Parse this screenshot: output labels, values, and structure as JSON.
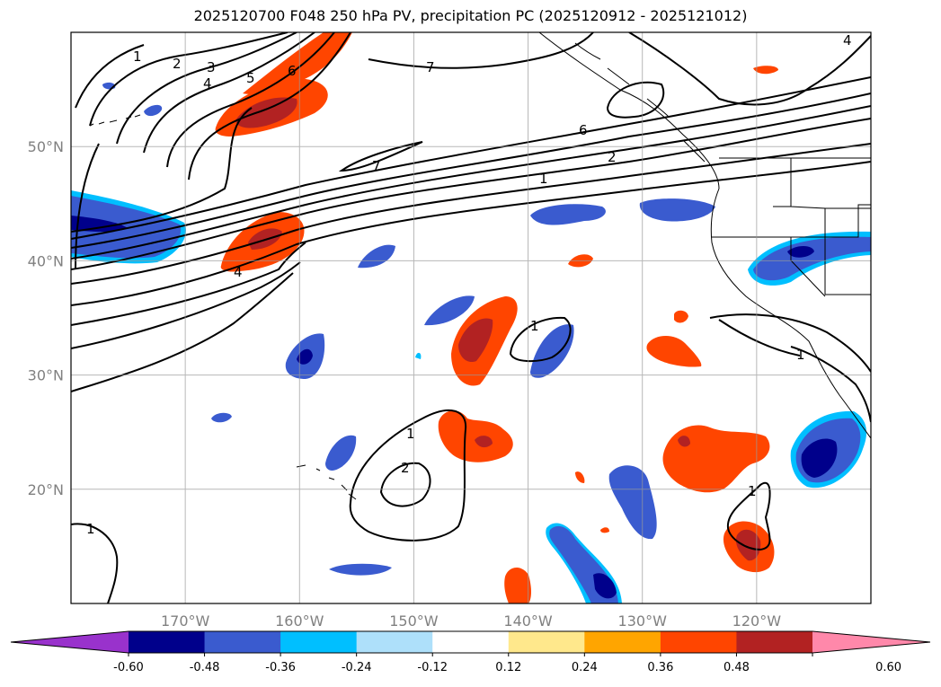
{
  "title": "2025120700 F048 250 hPa PV, precipitation PC (2025120912 - 2025121012)",
  "map": {
    "lon_range": [
      -180,
      -110
    ],
    "lat_range": [
      10,
      60
    ],
    "lon_ticks": [
      {
        "value": -170,
        "label": "170°W"
      },
      {
        "value": -160,
        "label": "160°W"
      },
      {
        "value": -150,
        "label": "150°W"
      },
      {
        "value": -140,
        "label": "140°W"
      },
      {
        "value": -130,
        "label": "130°W"
      },
      {
        "value": -120,
        "label": "120°W"
      }
    ],
    "lat_ticks": [
      {
        "value": 50,
        "label": "50°N"
      },
      {
        "value": 40,
        "label": "40°N"
      },
      {
        "value": 30,
        "label": "30°N"
      },
      {
        "value": 20,
        "label": "20°N"
      }
    ],
    "grid": true
  },
  "colorbar": {
    "extend": "both",
    "levels": [
      "-0.60",
      "-0.48",
      "-0.36",
      "-0.24",
      "-0.12",
      "0.12",
      "0.24",
      "0.36",
      "0.48",
      "0.60"
    ],
    "colors": [
      "#9932cc",
      "#00008b",
      "#3a5bcf",
      "#00bfff",
      "#aee0fa",
      "#ffffff",
      "#ffe88c",
      "#ffa500",
      "#ff4500",
      "#b22222",
      "#ff88aa"
    ]
  },
  "pv_contour_labels": [
    "1",
    "2",
    "3",
    "4",
    "5",
    "6",
    "7",
    "7",
    "6",
    "2",
    "1",
    "4",
    "1",
    "1",
    "2",
    "1",
    "1",
    "1",
    "4"
  ]
}
